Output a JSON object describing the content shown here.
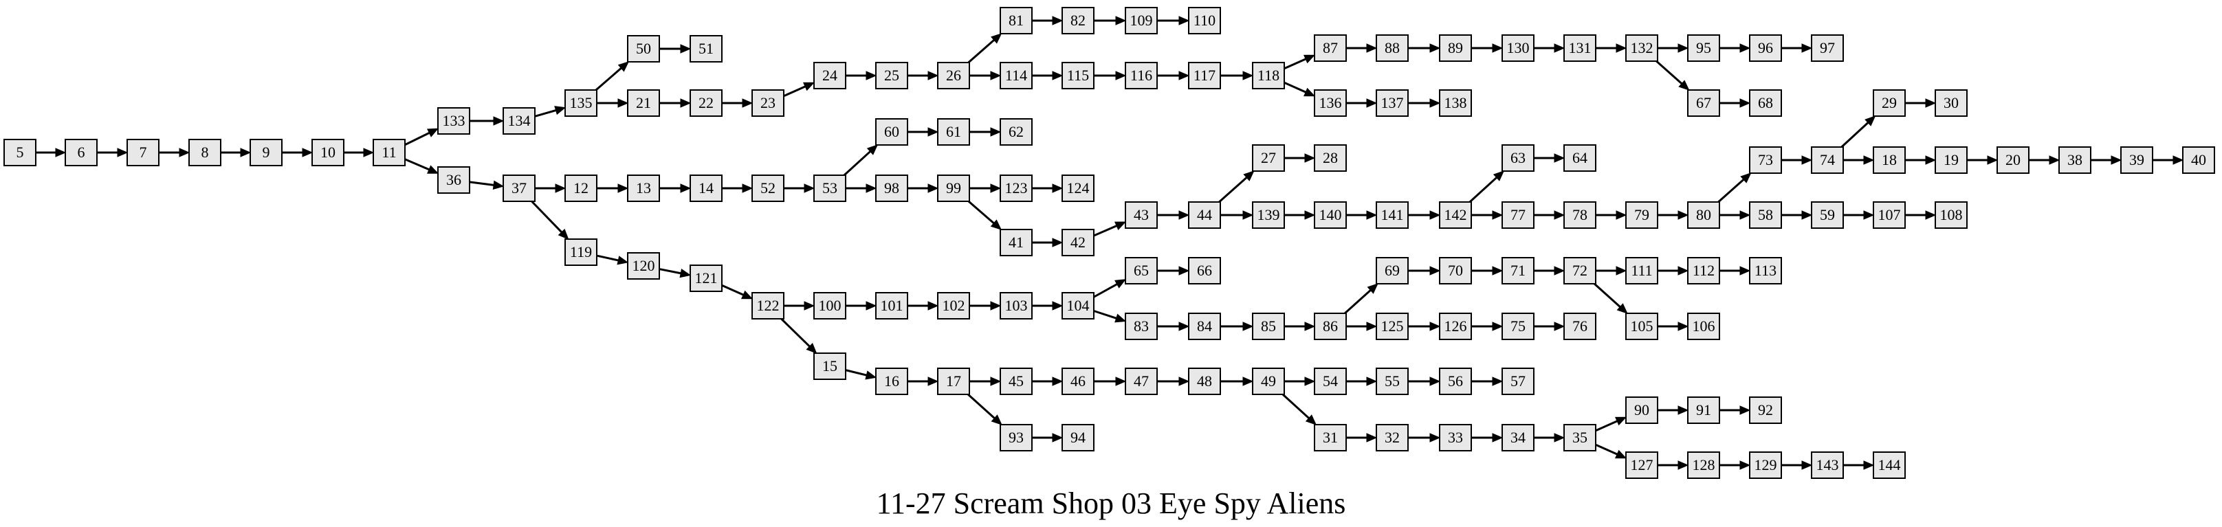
{
  "title": "11-27 Scream Shop 03 Eye Spy Aliens",
  "nodes": [
    "5",
    "6",
    "7",
    "8",
    "9",
    "10",
    "11",
    "133",
    "36",
    "134",
    "135",
    "50",
    "51",
    "21",
    "22",
    "23",
    "24",
    "25",
    "26",
    "81",
    "82",
    "109",
    "110",
    "114",
    "115",
    "116",
    "117",
    "118",
    "87",
    "88",
    "89",
    "130",
    "131",
    "132",
    "95",
    "96",
    "97",
    "67",
    "68",
    "136",
    "137",
    "138",
    "37",
    "12",
    "13",
    "14",
    "52",
    "53",
    "60",
    "61",
    "62",
    "98",
    "99",
    "123",
    "124",
    "41",
    "42",
    "43",
    "44",
    "27",
    "28",
    "139",
    "140",
    "141",
    "142",
    "63",
    "64",
    "77",
    "78",
    "79",
    "80",
    "73",
    "74",
    "29",
    "30",
    "18",
    "19",
    "20",
    "38",
    "39",
    "40",
    "58",
    "59",
    "107",
    "108",
    "119",
    "120",
    "121",
    "122",
    "100",
    "101",
    "102",
    "103",
    "104",
    "65",
    "66",
    "83",
    "84",
    "85",
    "86",
    "69",
    "70",
    "71",
    "72",
    "111",
    "112",
    "113",
    "105",
    "106",
    "125",
    "126",
    "75",
    "76",
    "15",
    "16",
    "17",
    "45",
    "46",
    "47",
    "48",
    "49",
    "54",
    "55",
    "56",
    "57",
    "31",
    "32",
    "33",
    "34",
    "35",
    "90",
    "91",
    "92",
    "127",
    "128",
    "129",
    "143",
    "144",
    "93",
    "94"
  ],
  "edges": [
    [
      "5",
      "6"
    ],
    [
      "6",
      "7"
    ],
    [
      "7",
      "8"
    ],
    [
      "8",
      "9"
    ],
    [
      "9",
      "10"
    ],
    [
      "10",
      "11"
    ],
    [
      "11",
      "133"
    ],
    [
      "11",
      "36"
    ],
    [
      "133",
      "134"
    ],
    [
      "134",
      "135"
    ],
    [
      "135",
      "50"
    ],
    [
      "50",
      "51"
    ],
    [
      "135",
      "21"
    ],
    [
      "21",
      "22"
    ],
    [
      "22",
      "23"
    ],
    [
      "23",
      "24"
    ],
    [
      "24",
      "25"
    ],
    [
      "25",
      "26"
    ],
    [
      "26",
      "81"
    ],
    [
      "81",
      "82"
    ],
    [
      "82",
      "109"
    ],
    [
      "109",
      "110"
    ],
    [
      "26",
      "114"
    ],
    [
      "114",
      "115"
    ],
    [
      "115",
      "116"
    ],
    [
      "116",
      "117"
    ],
    [
      "117",
      "118"
    ],
    [
      "118",
      "87"
    ],
    [
      "87",
      "88"
    ],
    [
      "88",
      "89"
    ],
    [
      "89",
      "130"
    ],
    [
      "130",
      "131"
    ],
    [
      "131",
      "132"
    ],
    [
      "132",
      "95"
    ],
    [
      "95",
      "96"
    ],
    [
      "96",
      "97"
    ],
    [
      "132",
      "67"
    ],
    [
      "67",
      "68"
    ],
    [
      "118",
      "136"
    ],
    [
      "136",
      "137"
    ],
    [
      "137",
      "138"
    ],
    [
      "36",
      "37"
    ],
    [
      "37",
      "12"
    ],
    [
      "12",
      "13"
    ],
    [
      "13",
      "14"
    ],
    [
      "14",
      "52"
    ],
    [
      "52",
      "53"
    ],
    [
      "53",
      "60"
    ],
    [
      "60",
      "61"
    ],
    [
      "61",
      "62"
    ],
    [
      "53",
      "98"
    ],
    [
      "98",
      "99"
    ],
    [
      "99",
      "123"
    ],
    [
      "123",
      "124"
    ],
    [
      "99",
      "41"
    ],
    [
      "41",
      "42"
    ],
    [
      "42",
      "43"
    ],
    [
      "43",
      "44"
    ],
    [
      "44",
      "27"
    ],
    [
      "27",
      "28"
    ],
    [
      "44",
      "139"
    ],
    [
      "139",
      "140"
    ],
    [
      "140",
      "141"
    ],
    [
      "141",
      "142"
    ],
    [
      "142",
      "63"
    ],
    [
      "63",
      "64"
    ],
    [
      "142",
      "77"
    ],
    [
      "77",
      "78"
    ],
    [
      "78",
      "79"
    ],
    [
      "79",
      "80"
    ],
    [
      "80",
      "73"
    ],
    [
      "73",
      "74"
    ],
    [
      "74",
      "29"
    ],
    [
      "29",
      "30"
    ],
    [
      "74",
      "18"
    ],
    [
      "18",
      "19"
    ],
    [
      "19",
      "20"
    ],
    [
      "20",
      "38"
    ],
    [
      "38",
      "39"
    ],
    [
      "39",
      "40"
    ],
    [
      "80",
      "58"
    ],
    [
      "58",
      "59"
    ],
    [
      "59",
      "107"
    ],
    [
      "107",
      "108"
    ],
    [
      "37",
      "119"
    ],
    [
      "119",
      "120"
    ],
    [
      "120",
      "121"
    ],
    [
      "121",
      "122"
    ],
    [
      "122",
      "100"
    ],
    [
      "100",
      "101"
    ],
    [
      "101",
      "102"
    ],
    [
      "102",
      "103"
    ],
    [
      "103",
      "104"
    ],
    [
      "104",
      "65"
    ],
    [
      "65",
      "66"
    ],
    [
      "104",
      "83"
    ],
    [
      "83",
      "84"
    ],
    [
      "84",
      "85"
    ],
    [
      "85",
      "86"
    ],
    [
      "86",
      "69"
    ],
    [
      "69",
      "70"
    ],
    [
      "70",
      "71"
    ],
    [
      "71",
      "72"
    ],
    [
      "72",
      "111"
    ],
    [
      "111",
      "112"
    ],
    [
      "112",
      "113"
    ],
    [
      "72",
      "105"
    ],
    [
      "105",
      "106"
    ],
    [
      "86",
      "125"
    ],
    [
      "125",
      "126"
    ],
    [
      "126",
      "75"
    ],
    [
      "75",
      "76"
    ],
    [
      "122",
      "15"
    ],
    [
      "15",
      "16"
    ],
    [
      "16",
      "17"
    ],
    [
      "17",
      "45"
    ],
    [
      "45",
      "46"
    ],
    [
      "46",
      "47"
    ],
    [
      "47",
      "48"
    ],
    [
      "48",
      "49"
    ],
    [
      "49",
      "54"
    ],
    [
      "54",
      "55"
    ],
    [
      "55",
      "56"
    ],
    [
      "56",
      "57"
    ],
    [
      "49",
      "31"
    ],
    [
      "31",
      "32"
    ],
    [
      "32",
      "33"
    ],
    [
      "33",
      "34"
    ],
    [
      "34",
      "35"
    ],
    [
      "35",
      "90"
    ],
    [
      "90",
      "91"
    ],
    [
      "91",
      "92"
    ],
    [
      "35",
      "127"
    ],
    [
      "127",
      "128"
    ],
    [
      "128",
      "129"
    ],
    [
      "129",
      "143"
    ],
    [
      "143",
      "144"
    ],
    [
      "17",
      "93"
    ],
    [
      "93",
      "94"
    ]
  ],
  "colors": {
    "node_fill": "#e8e8e8",
    "node_stroke": "#000000",
    "edge": "#000000",
    "background": "#ffffff"
  }
}
